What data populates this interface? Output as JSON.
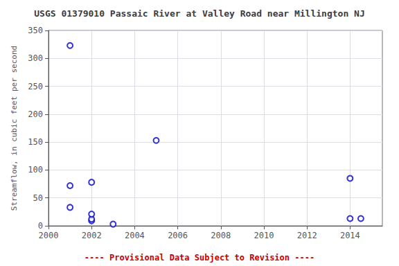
{
  "chart_data": {
    "type": "scatter",
    "title": "USGS 01379010 Passaic River at Valley Road near Millington NJ",
    "ylabel": "Streamflow, in cubic feet per second",
    "x": [
      2001,
      2001,
      2001,
      2002,
      2002,
      2002,
      2002,
      2003,
      2005,
      2014,
      2014,
      2014.5
    ],
    "values": [
      323,
      72,
      33,
      9,
      12,
      78,
      21,
      3,
      153,
      13,
      85,
      13
    ],
    "xlim": [
      2000,
      2015.5
    ],
    "ylim": [
      0,
      350
    ],
    "xticks": [
      2000,
      2002,
      2004,
      2006,
      2008,
      2010,
      2012,
      2014
    ],
    "yticks": [
      0,
      50,
      100,
      150,
      200,
      250,
      300,
      350
    ],
    "color": "#0000cc",
    "marker": "circle-open",
    "grid": true,
    "annotations": [
      {
        "text": "---- Provisional Data Subject to Revision ----",
        "color": "#cc0000"
      }
    ]
  }
}
